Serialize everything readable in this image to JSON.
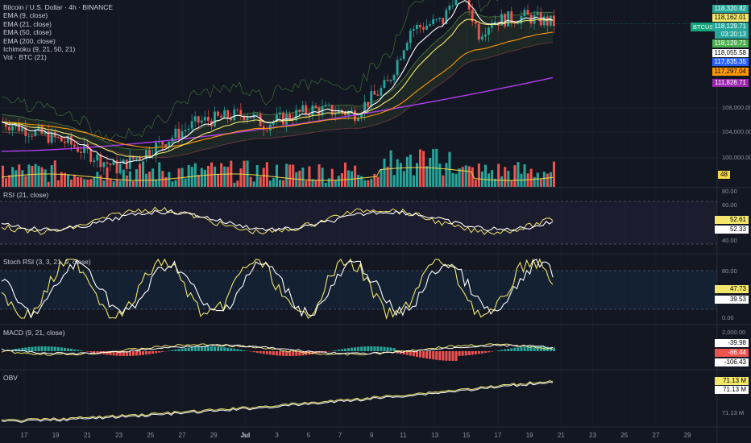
{
  "header": {
    "title": "Bitcoin / U.S. Dollar · 4h · BINANCE",
    "indicators": [
      "EMA (9, close)",
      "EMA (21, close)",
      "EMA (50, close)",
      "EMA (200, close)",
      "Ichimoku (9, 21, 50, 21)",
      "Vol · BTC (21)"
    ]
  },
  "symbol_tag": "BTCUSD",
  "colors": {
    "bg": "#131722",
    "up": "#26a69a",
    "down": "#ef5350",
    "ema9": "#ffffff",
    "ema21": "#f3e66b",
    "ema50": "#ff9800",
    "ema200": "#b13ef0",
    "cloud_line": "#4f7b3d",
    "vol_ma": "#f5d949",
    "rsi": "#f3e66b",
    "rsi_sig": "#ffffff",
    "grid": "#1e2230"
  },
  "price_axis": {
    "ticks": [
      "108,000.00",
      "104,000.00",
      "100,000.00"
    ],
    "badges": [
      {
        "label": "118,320.82",
        "bg": "#26a69a",
        "fg": "#ffffff"
      },
      {
        "label": "118,162.01",
        "bg": "#f3e66b",
        "fg": "#000000"
      },
      {
        "label": "118,129.71",
        "bg": "#26a69a",
        "fg": "#ffffff"
      },
      {
        "label": "03:20:13",
        "bg": "#26a69a",
        "fg": "#ffffff"
      },
      {
        "label": "118,129.71",
        "bg": "#4caf50",
        "fg": "#ffffff"
      },
      {
        "label": "118,055.58",
        "bg": "#ffffff",
        "fg": "#000000"
      },
      {
        "label": "117,835.35",
        "bg": "#2962ff",
        "fg": "#ffffff"
      },
      {
        "label": "117,297.04",
        "bg": "#ff9800",
        "fg": "#000000"
      },
      {
        "label": "111,828.71",
        "bg": "#9c27b0",
        "fg": "#ffffff"
      }
    ],
    "volume_badge": "48"
  },
  "rsi": {
    "title": "RSI (21, close)",
    "ticks": [
      "80.00",
      "60.00",
      "40.00"
    ],
    "badge1": "52.61",
    "badge2": "52.33"
  },
  "stoch": {
    "title": "Stoch RSI (3, 3, 21, 9, close)",
    "ticks": [
      "80.00",
      "0.00"
    ],
    "badge1": "47.73",
    "badge2": "39.53"
  },
  "macd": {
    "title": "MACD (9, 21, close)",
    "ticks": [
      "2,000.00"
    ],
    "badge1": "-39.98",
    "badge2": "-66.44",
    "badge3": "-106.43"
  },
  "obv": {
    "title": "OBV",
    "ticks": [
      "71.13 M"
    ],
    "badge1": "71.13 M",
    "badge2": "71.13 M"
  },
  "time_axis": [
    "17",
    "19",
    "21",
    "23",
    "25",
    "27",
    "29",
    "Jul",
    "3",
    "5",
    "7",
    "9",
    "11",
    "13",
    "15",
    "17",
    "19",
    "21",
    "23",
    "25",
    "27",
    "29"
  ],
  "chart_data": {
    "type": "candlestick",
    "title": "Bitcoin / U.S. Dollar · 4h · BINANCE",
    "price_range": [
      98000,
      120500
    ],
    "price_anchors": {
      "start": 106500,
      "jun23_low": 101000,
      "jul2": 107500,
      "jul10": 111000,
      "jul14_high": 123000,
      "end": 118129.71
    },
    "last_close": 118129.71,
    "ema_levels": {
      "ema9": 118162.01,
      "ema21": 118055.58,
      "ema50": 117297.04,
      "ema200": 111828.71
    },
    "rsi_levels": [
      80,
      60,
      40
    ],
    "rsi_last": [
      52.61,
      52.33
    ],
    "stoch_levels": [
      80,
      20,
      0
    ],
    "stoch_last": [
      47.73,
      39.53
    ],
    "macd_last": [
      -39.98,
      -66.44,
      -106.43
    ],
    "obv_last": "71.13 M"
  }
}
